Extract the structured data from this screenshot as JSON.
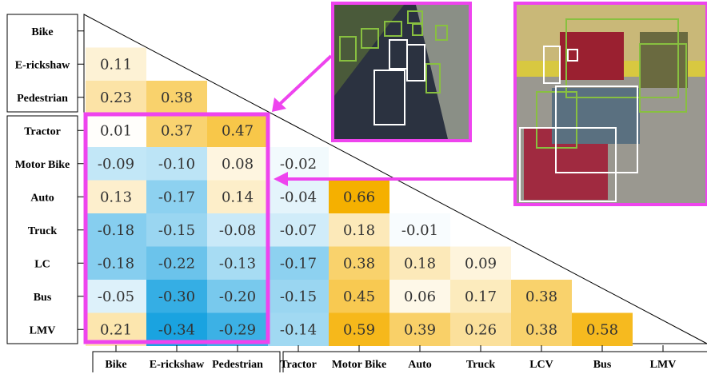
{
  "chart_data": {
    "type": "heatmap",
    "title": "",
    "row_labels": [
      "Bike",
      "E-rickshaw",
      "Pedestrian",
      "Tractor",
      "Motor Bike",
      "Auto",
      "Truck",
      "LC",
      "Bus",
      "LMV"
    ],
    "col_labels": [
      "Bike",
      "E-rickshaw",
      "Pedestrian",
      "Tractor",
      "Motor Bike",
      "Auto",
      "Truck",
      "LCV",
      "Bus",
      "LMV"
    ],
    "values": [
      [],
      [
        0.11
      ],
      [
        0.23,
        0.38
      ],
      [
        0.01,
        0.37,
        0.47
      ],
      [
        -0.09,
        -0.1,
        0.08,
        -0.02
      ],
      [
        0.13,
        -0.17,
        0.14,
        -0.04,
        0.66
      ],
      [
        -0.18,
        -0.15,
        -0.08,
        -0.07,
        0.18,
        -0.01
      ],
      [
        -0.18,
        -0.22,
        -0.13,
        -0.17,
        0.38,
        0.18,
        0.09
      ],
      [
        -0.05,
        -0.3,
        -0.2,
        -0.15,
        0.45,
        0.06,
        0.17,
        0.38
      ],
      [
        0.21,
        -0.34,
        -0.29,
        -0.14,
        0.59,
        0.39,
        0.26,
        0.38,
        0.58
      ]
    ],
    "value_range": [
      -0.34,
      0.66
    ],
    "colors": {
      "negative": "#1aa3e0",
      "neutral": "#ffffff",
      "positive": "#f5b000",
      "highlight": "#ee44ee",
      "green_box": "#88c040"
    }
  }
}
